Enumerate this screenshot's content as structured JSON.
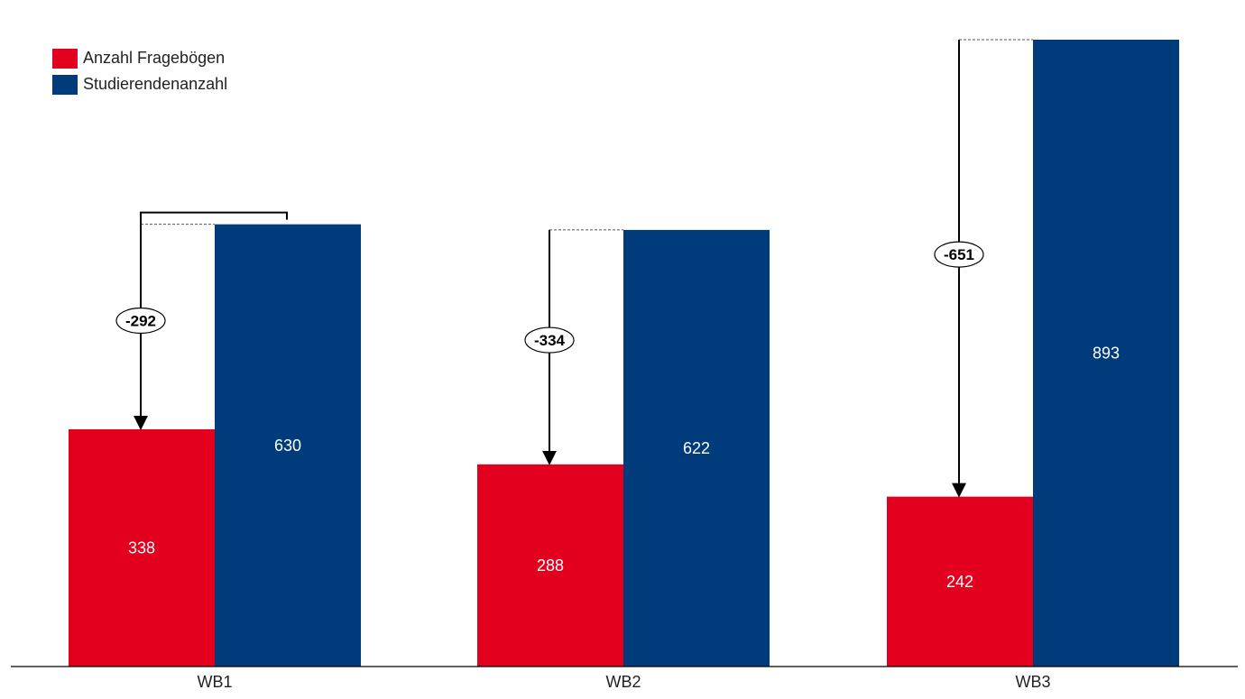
{
  "chart_data": {
    "type": "bar",
    "categories": [
      "WB1",
      "WB2",
      "WB3"
    ],
    "series": [
      {
        "name": "Anzahl Fragebögen",
        "values": [
          338,
          288,
          242
        ],
        "color": "#e3001f"
      },
      {
        "name": "Studierendenanzahl",
        "values": [
          630,
          622,
          893
        ],
        "color": "#003b7b"
      }
    ],
    "differences": [
      "-292",
      "-334",
      "-651"
    ],
    "ylim": [
      0,
      893
    ],
    "legend_position": "top-left",
    "grid": false
  }
}
